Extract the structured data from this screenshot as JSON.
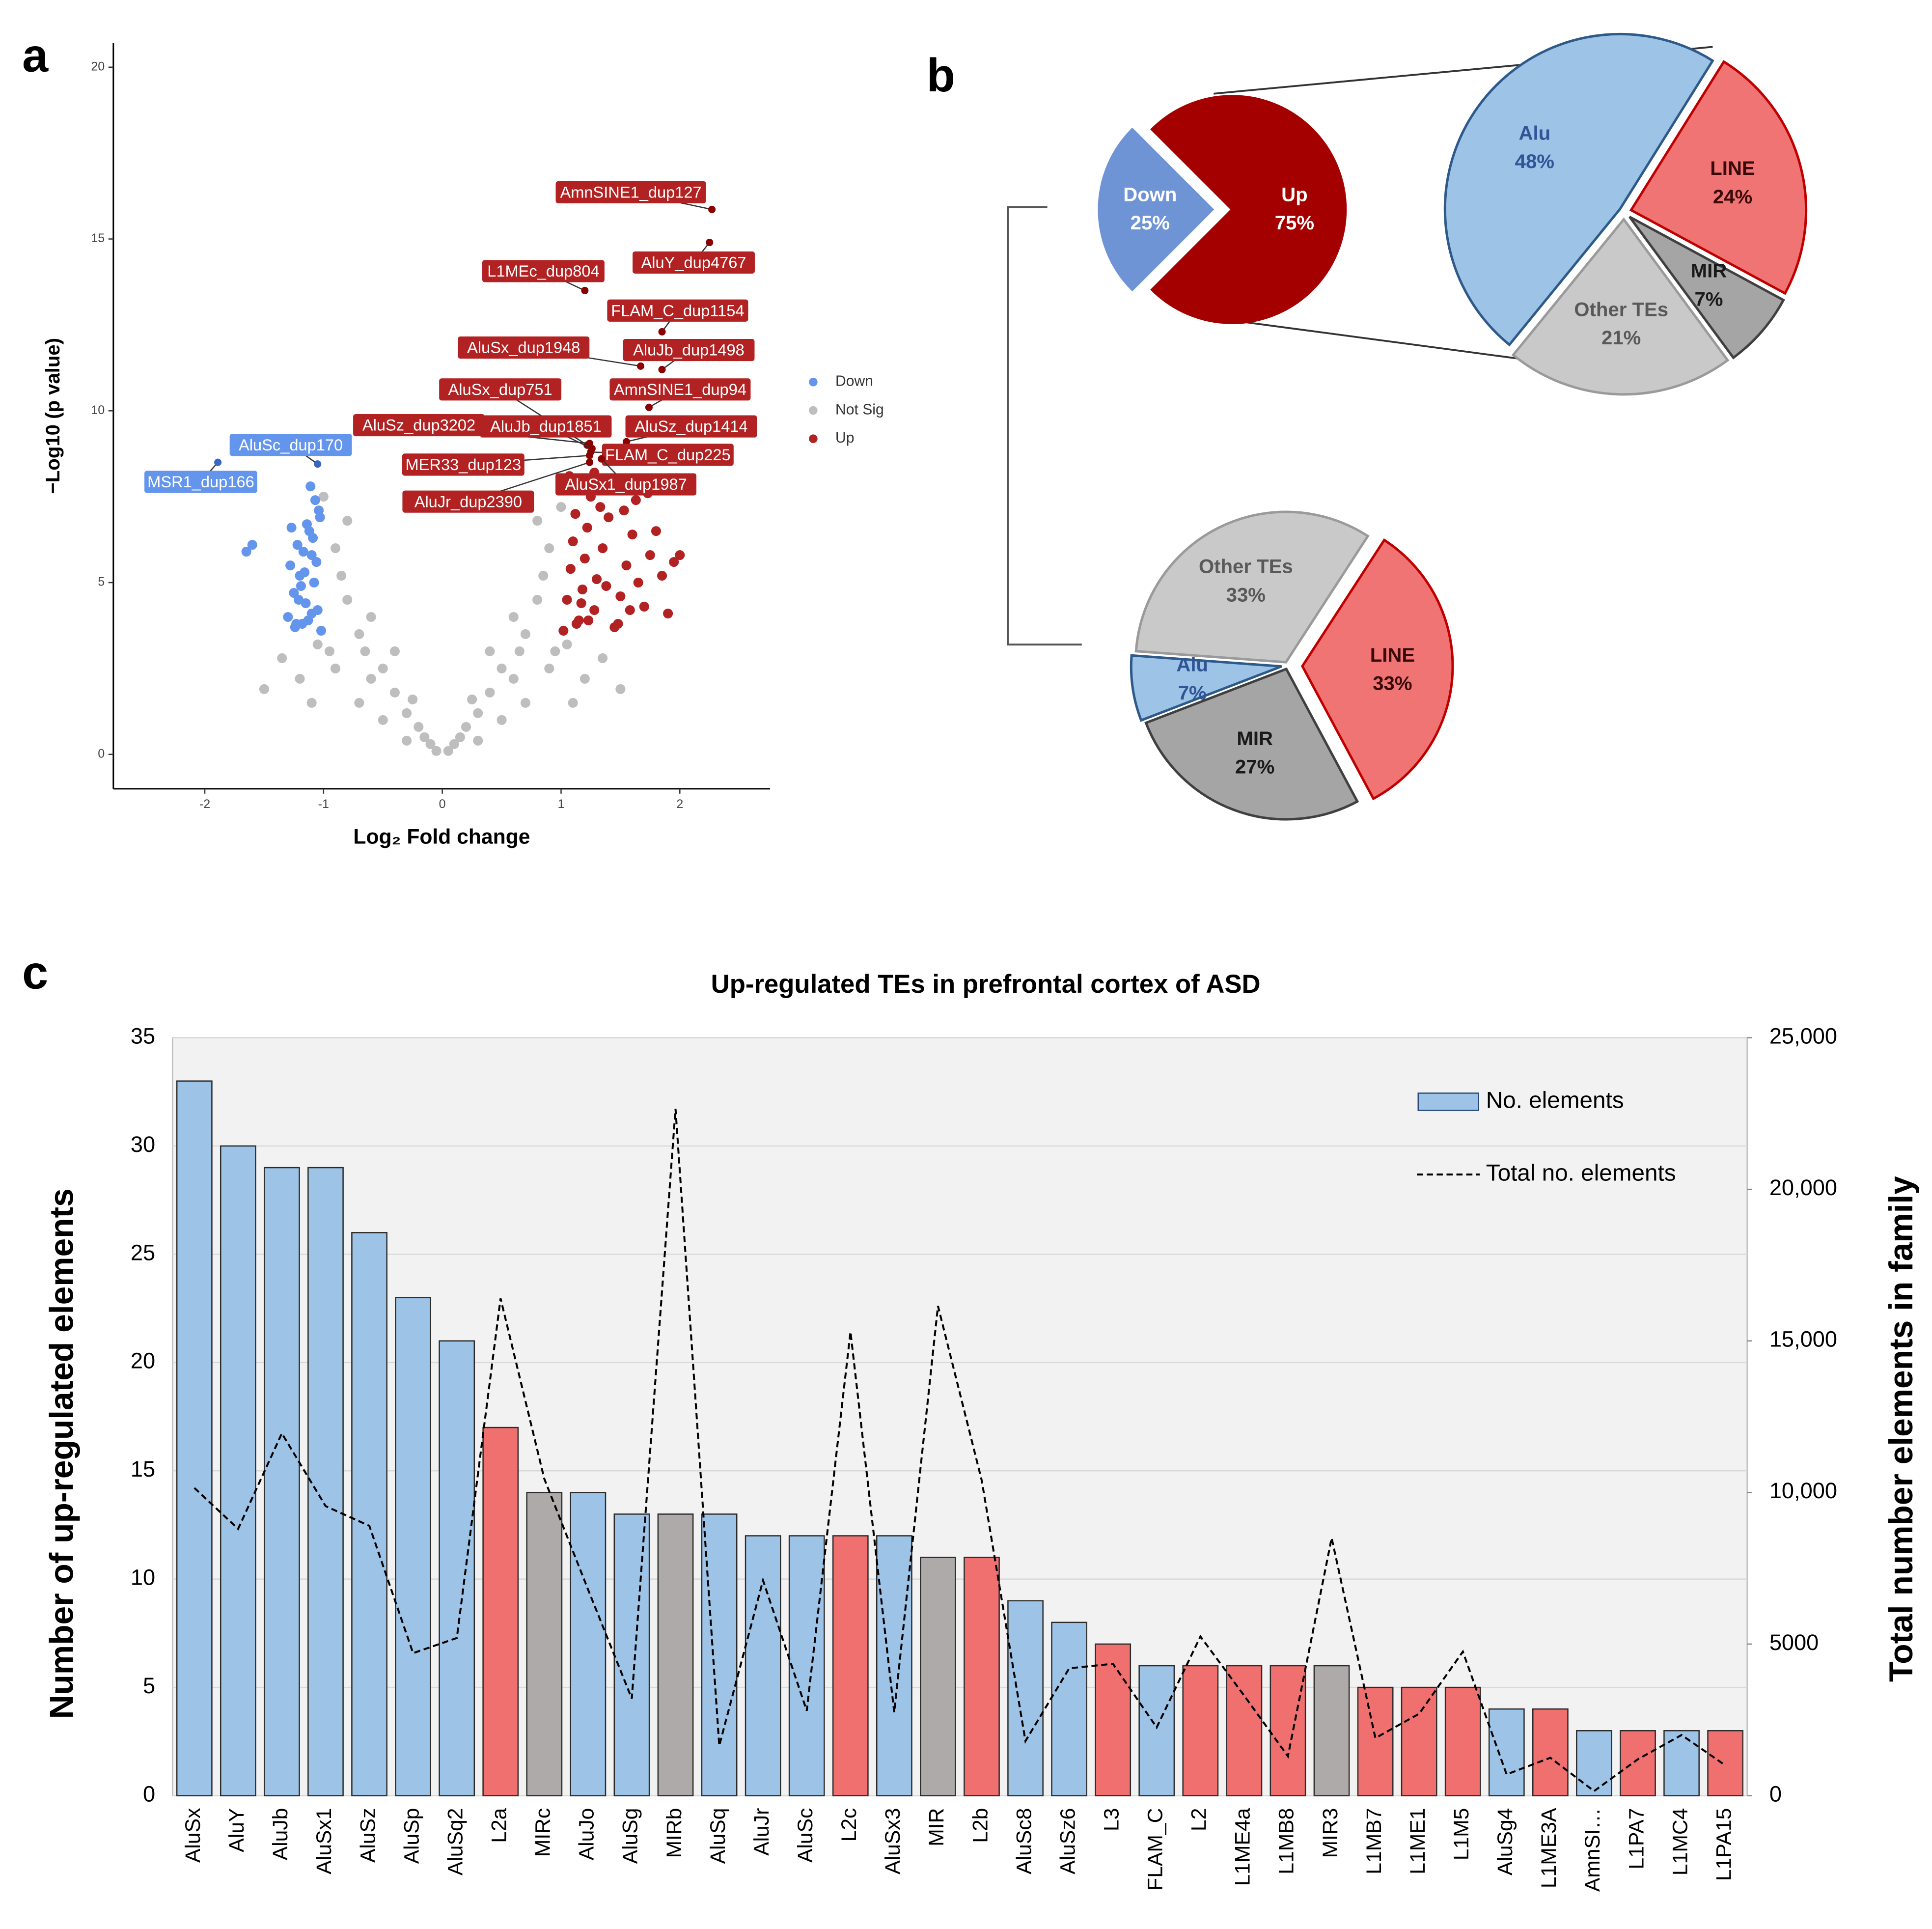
{
  "chart_data": [
    {
      "type": "scatter",
      "panel": "a",
      "xlabel": "Log₂ Fold change",
      "ylabel": "−Log10 (p value)",
      "xlim": [
        -2.77,
        2.76
      ],
      "ylim": [
        -1,
        20.7
      ],
      "xticks": [
        -2,
        -1,
        0,
        1,
        2
      ],
      "yticks": [
        0,
        5,
        10,
        15,
        20
      ],
      "series": [
        {
          "name": "Down",
          "color": "#6495ed",
          "x": [
            -1.02,
            -1.05,
            -1.08,
            -1.1,
            -1.12,
            -1.15,
            -1.18,
            -1.2,
            -1.22,
            -1.25,
            -1.28,
            -1.3,
            -1.03,
            -1.07,
            -1.11,
            -1.14,
            -1.19,
            -1.24,
            -1.06,
            -1.09,
            -1.13,
            -1.17,
            -1.21,
            -1.27,
            -1.6,
            -1.65,
            -1.04,
            -1.1,
            -1.16,
            -1.23
          ],
          "values": [
            3.6,
            4.2,
            5,
            5.8,
            6.5,
            4.4,
            3.8,
            5.2,
            6.1,
            4.7,
            5.5,
            4,
            6.9,
            7.4,
            7.8,
            6.7,
            4.9,
            3.7,
            5.6,
            6.3,
            3.9,
            5.9,
            4.5,
            6.6,
            6.1,
            5.9,
            7.1,
            4.1,
            5.3,
            3.8
          ]
        },
        {
          "name": "Not Sig",
          "color": "#bebebe",
          "x": [
            -0.05,
            0.05,
            -0.1,
            0.1,
            -0.2,
            0.2,
            -0.3,
            0.3,
            -0.4,
            0.4,
            -0.5,
            0.5,
            -0.6,
            0.6,
            -0.7,
            0.7,
            -0.8,
            0.8,
            -0.9,
            0.9,
            -1.0,
            1.0,
            -0.5,
            0.5,
            -0.7,
            0.7,
            -0.9,
            0.9,
            -1.1,
            1.1,
            -1.2,
            1.2,
            -0.3,
            0.3,
            -0.6,
            0.6,
            -0.95,
            0.95,
            -0.4,
            0.4,
            -0.8,
            0.8,
            -1.35,
            1.35,
            -1.5,
            1.5,
            -0.85,
            0.85,
            -0.65,
            0.65,
            -0.15,
            0.15,
            -1.05,
            1.05,
            -0.25,
            0.25
          ],
          "values": [
            0.1,
            0.1,
            0.3,
            0.3,
            0.8,
            0.8,
            1.2,
            1.2,
            1.8,
            1.8,
            2.5,
            2.5,
            2.2,
            2.2,
            3.5,
            3.5,
            4.5,
            4.5,
            6,
            6,
            7.5,
            7.2,
            1,
            1,
            1.5,
            1.5,
            2.5,
            2.5,
            1.5,
            1.5,
            2.2,
            2.2,
            0.4,
            0.4,
            4,
            4,
            3,
            3,
            3,
            3,
            6.8,
            6.8,
            2.8,
            2.8,
            1.9,
            1.9,
            5.2,
            5.2,
            3,
            3,
            0.5,
            0.5,
            3.2,
            3.2,
            1.6,
            1.6
          ]
        },
        {
          "name": "Up",
          "color": "#b22222",
          "x": [
            1.02,
            1.05,
            1.08,
            1.1,
            1.12,
            1.15,
            1.18,
            1.2,
            1.22,
            1.25,
            1.28,
            1.3,
            1.35,
            1.4,
            1.45,
            1.5,
            1.55,
            1.6,
            1.65,
            1.7,
            1.75,
            1.8,
            1.85,
            1.9,
            1.95,
            2.0,
            1.03,
            1.07,
            1.13,
            1.17,
            1.23,
            1.33,
            1.43,
            1.53,
            1.63,
            1.73,
            1.38,
            1.48,
            1.58,
            1.28
          ],
          "values": [
            3.6,
            4.5,
            5.4,
            6.2,
            7,
            3.9,
            4.8,
            5.7,
            6.6,
            7.5,
            4.2,
            5.1,
            6,
            6.9,
            3.7,
            4.6,
            5.5,
            6.4,
            5,
            4.3,
            5.8,
            6.5,
            5.2,
            4.1,
            5.6,
            5.8,
            7.8,
            8.1,
            3.8,
            4.4,
            3.9,
            7.2,
            7.7,
            7.1,
            7.4,
            7.6,
            4.9,
            3.8,
            4.2,
            8.2
          ]
        }
      ],
      "annotations": [
        {
          "text": "AmnSINE1_dup127",
          "x": 2.27,
          "y": 15.86
        },
        {
          "text": "AluY_dup4767",
          "x": 2.25,
          "y": 14.9
        },
        {
          "text": "L1MEc_dup804",
          "x": 1.2,
          "y": 13.5
        },
        {
          "text": "FLAM_C_dup1154",
          "x": 1.85,
          "y": 12.3
        },
        {
          "text": "AluJb_dup1498",
          "x": 1.85,
          "y": 11.2
        },
        {
          "text": "AluSx_dup1948",
          "x": 1.67,
          "y": 11.3
        },
        {
          "text": "AmnSINE1_dup94",
          "x": 1.74,
          "y": 10.1
        },
        {
          "text": "AluSx_dup751",
          "x": 1.22,
          "y": 9.0
        },
        {
          "text": "AluSz_dup1414",
          "x": 1.55,
          "y": 9.1
        },
        {
          "text": "AluSz_dup3202",
          "x": 1.24,
          "y": 9.05
        },
        {
          "text": "AluJb_dup1851",
          "x": 1.26,
          "y": 8.9
        },
        {
          "text": "FLAM_C_dup225",
          "x": 1.25,
          "y": 8.8
        },
        {
          "text": "MER33_dup123",
          "x": 1.24,
          "y": 8.7
        },
        {
          "text": "AluSx1_dup1987",
          "x": 1.34,
          "y": 8.6
        },
        {
          "text": "AluJr_dup2390",
          "x": 1.24,
          "y": 8.5
        },
        {
          "text": "AluSc_dup170",
          "x": -1.05,
          "y": 8.45
        },
        {
          "text": "MSR1_dup166",
          "x": -1.89,
          "y": 8.5
        }
      ]
    },
    {
      "type": "pie",
      "panel": "b",
      "categories": [
        "Down",
        "Up"
      ],
      "values": [
        25,
        75
      ],
      "value_labels": [
        "25%",
        "75%"
      ],
      "colors": [
        "#6f94d6",
        "#a50000"
      ]
    },
    {
      "type": "pie",
      "categories": [
        "LINE",
        "MIR",
        "Other TEs",
        "Alu"
      ],
      "values": [
        24,
        7,
        21,
        48
      ],
      "value_labels": [
        "24%",
        "7%",
        "21%",
        "48%"
      ],
      "colors": [
        "#f07474",
        "#a5a5a5",
        "#c9c9c9",
        "#9dc3e6"
      ]
    },
    {
      "type": "pie",
      "categories": [
        "LINE",
        "MIR",
        "Alu",
        "Other TEs"
      ],
      "values": [
        33,
        27,
        7,
        33
      ],
      "value_labels": [
        "33%",
        "27%",
        "7%",
        "33%"
      ],
      "colors": [
        "#f07474",
        "#a5a5a5",
        "#9dc3e6",
        "#c9c9c9"
      ]
    },
    {
      "type": "bar",
      "panel": "c",
      "title": "Up-regulated TEs in prefrontal cortex of ASD",
      "ylabel": "Number of up-regulated elements",
      "y2label": "Total number elements in family",
      "categories": [
        "AluSx",
        "AluY",
        "AluJb",
        "AluSx1",
        "AluSz",
        "AluSp",
        "AluSq2",
        "L2a",
        "MIRc",
        "AluJo",
        "AluSg",
        "MIRb",
        "AluSq",
        "AluJr",
        "AluSc",
        "L2c",
        "AluSx3",
        "MIR",
        "L2b",
        "AluSc8",
        "AluSz6",
        "L3",
        "FLAM_C",
        "L2",
        "L1ME4a",
        "L1MB8",
        "MIR3",
        "L1MB7",
        "L1ME1",
        "L1M5",
        "AluSg4",
        "L1ME3A",
        "AmnSI…",
        "L1PA7",
        "L1MC4",
        "L1PA15"
      ],
      "ylim": [
        0,
        35
      ],
      "yticks": [
        0,
        5,
        10,
        15,
        20,
        25,
        30,
        35
      ],
      "y2lim": [
        0,
        25000
      ],
      "y2ticks": [
        0,
        5000,
        {
          "value": 10000,
          "label": "10,000"
        },
        {
          "value": 15000,
          "label": "15,000"
        },
        {
          "value": 20000,
          "label": "20,000"
        },
        {
          "value": 25000,
          "label": "25,000"
        }
      ],
      "grid": true,
      "series": [
        {
          "name": "No. elements",
          "color": "#9dc3e6",
          "values": [
            33,
            30,
            29,
            29,
            26,
            23,
            21,
            17,
            14,
            14,
            13,
            13,
            13,
            12,
            12,
            12,
            12,
            11,
            11,
            9,
            8,
            7,
            6,
            6,
            6,
            6,
            6,
            5,
            5,
            5,
            4,
            4,
            3,
            3,
            3,
            3
          ],
          "colors": [
            "#9dc3e6",
            "#9dc3e6",
            "#9dc3e6",
            "#9dc3e6",
            "#9dc3e6",
            "#9dc3e6",
            "#9dc3e6",
            "#f07070",
            "#aeaaaa",
            "#9dc3e6",
            "#9dc3e6",
            "#aeaaaa",
            "#9dc3e6",
            "#9dc3e6",
            "#9dc3e6",
            "#f07070",
            "#9dc3e6",
            "#aeaaaa",
            "#f07070",
            "#9dc3e6",
            "#9dc3e6",
            "#f07070",
            "#9dc3e6",
            "#f07070",
            "#f07070",
            "#f07070",
            "#aeaaaa",
            "#f07070",
            "#f07070",
            "#f07070",
            "#9dc3e6",
            "#f07070",
            "#9dc3e6",
            "#f07070",
            "#9dc3e6",
            "#f07070"
          ]
        },
        {
          "name": "Total no. elements",
          "color": "#000000",
          "axis": "y2",
          "dashed": true,
          "values": [
            10150,
            8800,
            11950,
            9550,
            8900,
            4700,
            5200,
            16400,
            10450,
            6800,
            3200,
            22650,
            1650,
            7100,
            2800,
            15300,
            2750,
            16150,
            10400,
            1800,
            4200,
            4350,
            2250,
            5250,
            3300,
            1300,
            8500,
            1900,
            2700,
            4750,
            700,
            1250,
            150,
            1200,
            2000,
            1000
          ]
        }
      ]
    }
  ]
}
